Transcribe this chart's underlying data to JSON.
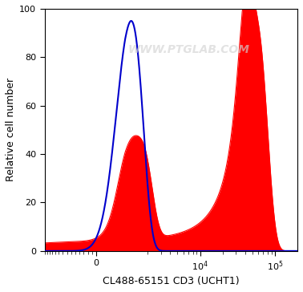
{
  "title": "",
  "xlabel": "CL488-65151 CD3 (UCHT1)",
  "ylabel": "Relative cell number",
  "ylim": [
    0,
    100
  ],
  "yticks": [
    0,
    20,
    40,
    60,
    80,
    100
  ],
  "watermark": "WWW.PTGLAB.COM",
  "background_color": "#ffffff",
  "plot_bg_color": "#ffffff",
  "blue_line_color": "#0000cc",
  "red_fill_color": "#ff0000",
  "symlog_linthresh": 1000,
  "symlog_linscale": 0.35,
  "xlim": [
    -2000,
    200000
  ],
  "blue_gaussians": [
    {
      "mu": 1200,
      "sigma": 500,
      "amp": 95
    }
  ],
  "red_gaussians": [
    {
      "mu": 1600,
      "sigma": 600,
      "amp": 40
    },
    {
      "mu": 1000,
      "sigma": 300,
      "amp": 12
    },
    {
      "mu": 55000,
      "sigma": 22000,
      "amp": 95
    },
    {
      "mu": 40000,
      "sigma": 8000,
      "amp": 35
    }
  ],
  "xticks_major": [
    0,
    10000,
    100000
  ],
  "xtick_labels": [
    "0",
    "$10^{4}$",
    "$10^{5}$"
  ]
}
